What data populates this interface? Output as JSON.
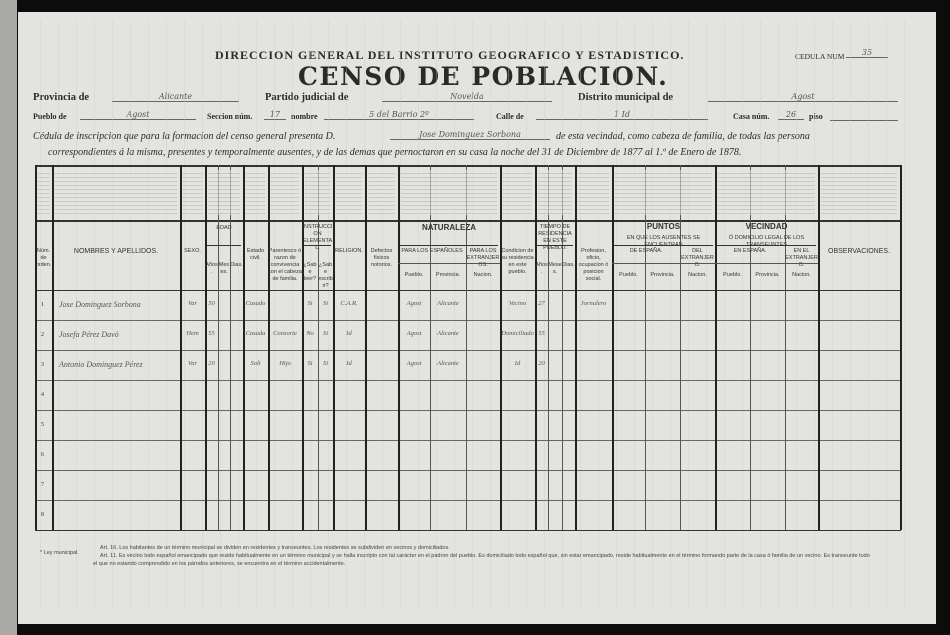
{
  "header": {
    "agency": "DIRECCION GENERAL DEL INSTITUTO GEOGRAFICO Y ESTADISTICO.",
    "title": "CENSO DE POBLACION.",
    "cedula_label": "CEDULA NUM",
    "cedula_value": "35"
  },
  "fields": {
    "provincia_label": "Provincia de",
    "provincia_value": "Alicante",
    "partido_label": "Partido judicial de",
    "partido_value": "Novelda",
    "distrito_label": "Distrito municipal de",
    "distrito_value": "Agost",
    "pueblo_label": "Pueblo de",
    "pueblo_value": "Agost",
    "seccion_label": "Seccion núm.",
    "seccion_value": "17",
    "nombre_label": "nombre",
    "nombre_value": "5 del Barrio 2º",
    "calle_label": "Calle de",
    "calle_value": "1 Id",
    "casa_label": "Casa núm.",
    "casa_value": "26",
    "piso_label": "piso",
    "piso_value": ""
  },
  "intro": {
    "line1_a": "Cédula de inscripcion que para la formacion del censo general presenta D.",
    "presenter": "Jose Dominguez Sorbona",
    "line1_b": "de esta vecindad, como cabeza de familia, de todas las persona",
    "line2": "correspondientes á la misma, presentes y temporalmente ausentes, y de las demas que pernoctaron en su casa la noche del 31 de Diciembre de 1877 al 1.º de Enero de 1878."
  },
  "columns": {
    "num": "Núm. de orden.",
    "name": "NOMBRES Y APELLIDOS.",
    "sexo": "SEXO.",
    "edad": "EDAD",
    "anos": "Años.",
    "meses": "Meses.",
    "dias": "Dias.",
    "estado": "Estado civil.",
    "parentesco": "Parentesco ó razon de convivencia con el cabeza de familia.",
    "instruccion": "INSTRUCCION ELEMENTAL.",
    "leer": "¿Sabe leer?",
    "escribir": "¿Sabe escribir?",
    "religion": "RELIGION.",
    "defectos": "Defectos físicos notorios.",
    "naturaleza": "NATURALEZA",
    "espanoles": "PARA LOS ESPAÑOLES",
    "extranjeros": "PARA LOS EXTRANJEROS.",
    "pueblo": "Pueblo.",
    "provincia": "Provincia.",
    "nacion": "Nacion.",
    "condicion": "Condicion de su residencia en este pueblo.",
    "tiempo": "TIEMPO DE RESIDENCIA EN ESTE PUEBLO.",
    "profesion": "Profesion, oficio, ocupacion ó posicion social.",
    "puntos": "PUNTOS",
    "puntos_sub": "EN QUE LOS AUSENTES SE ENCUENTRAN",
    "de_espana": "DE ESPAÑA.",
    "del_extranjero": "DEL EXTRANJERO.",
    "vecindad": "VECINDAD",
    "vecindad_sub": "Ó DOMICILIO LEGAL DE LOS TRANSEUNTES",
    "en_espana": "EN ESPAÑA.",
    "en_extranjero": "EN EL EXTRANJERO.",
    "observaciones": "OBSERVACIONES."
  },
  "rows": [
    {
      "n": "1",
      "name": "Jose Dominguez Sorbona",
      "sexo": "Var",
      "anos": "50",
      "estado": "Casado",
      "parentesco": "",
      "leer": "Si",
      "escribir": "Si",
      "religion": "C.A.R.",
      "nat_pueblo": "Agost",
      "nat_prov": "Alicante",
      "condicion": "Vecino",
      "t_anos": "27",
      "profesion": "Jornalero"
    },
    {
      "n": "2",
      "name": "Josefa Pérez Davó",
      "sexo": "Hem",
      "anos": "55",
      "estado": "Casada",
      "parentesco": "Consorte",
      "leer": "No",
      "escribir": "Si",
      "religion": "Id",
      "nat_pueblo": "Agost",
      "nat_prov": "Alicante",
      "condicion": "Domiciliado",
      "t_anos": "55",
      "profesion": ""
    },
    {
      "n": "3",
      "name": "Antonio Dominguez Pérez",
      "sexo": "Var",
      "anos": "20",
      "estado": "Solt",
      "parentesco": "Hijo",
      "leer": "Si",
      "escribir": "Si",
      "religion": "Id",
      "nat_pueblo": "Agost",
      "nat_prov": "Alicante",
      "condicion": "Id",
      "t_anos": "20",
      "profesion": ""
    },
    {
      "n": "4"
    },
    {
      "n": "5"
    },
    {
      "n": "6"
    },
    {
      "n": "7"
    },
    {
      "n": "8"
    }
  ],
  "footer": {
    "note_label": "* Ley municipal.",
    "art16": "Art. 16. Los habitantes de un término municipal se dividen en residentes y transeuntes. Los residentes se subdividen en vecinos y domiciliados.",
    "art11": "Art. 11. Es vecino todo español emancipado que reside habitualmente en un término municipal y se halla inscripto con tal carácter en el padron del pueblo. Es domiciliado todo español que, sin estar emancipado, reside habitualmente en el término formando parte de la casa ó familia de un vecino. Es transeunte todo",
    "art11b": "el que no estando comprendido en los párrafos anteriores, se encuentra en el término accidentalmente."
  }
}
